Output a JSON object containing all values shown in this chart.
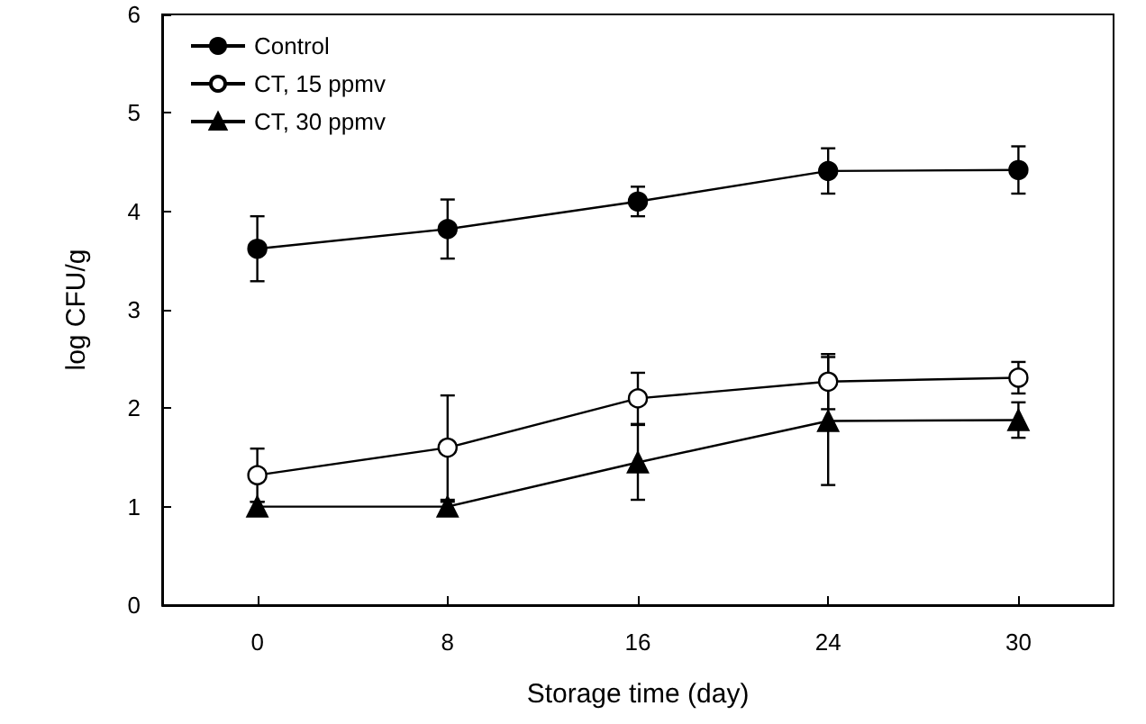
{
  "chart_data": {
    "type": "line",
    "xlabel": "Storage time (day)",
    "ylabel": "log CFU/g",
    "categories": [
      "0",
      "8",
      "16",
      "24",
      "30"
    ],
    "series": [
      {
        "name": "Control",
        "color": "#000000",
        "marker": "circle",
        "values": [
          3.62,
          3.82,
          4.1,
          4.41,
          4.42
        ],
        "errors": [
          0.33,
          0.3,
          0.15,
          0.23,
          0.24
        ]
      },
      {
        "name": "CT, 15 ppmv",
        "color": "#000000",
        "marker": "circle",
        "values": [
          1.32,
          1.6,
          2.1,
          2.27,
          2.31
        ],
        "errors": [
          0.27,
          0.53,
          0.26,
          0.28,
          0.16
        ]
      },
      {
        "name": "CT, 30 ppmv",
        "color": "#000000",
        "marker": "triangle",
        "values": [
          1.0,
          1.0,
          1.45,
          1.87,
          1.88
        ],
        "errors": [
          0.05,
          0.05,
          0.38,
          0.65,
          0.18
        ]
      }
    ],
    "ylim": [
      0,
      6
    ],
    "yticks": [
      0,
      1,
      2,
      3,
      4,
      5,
      6
    ],
    "grid": false,
    "legend": "top left"
  }
}
